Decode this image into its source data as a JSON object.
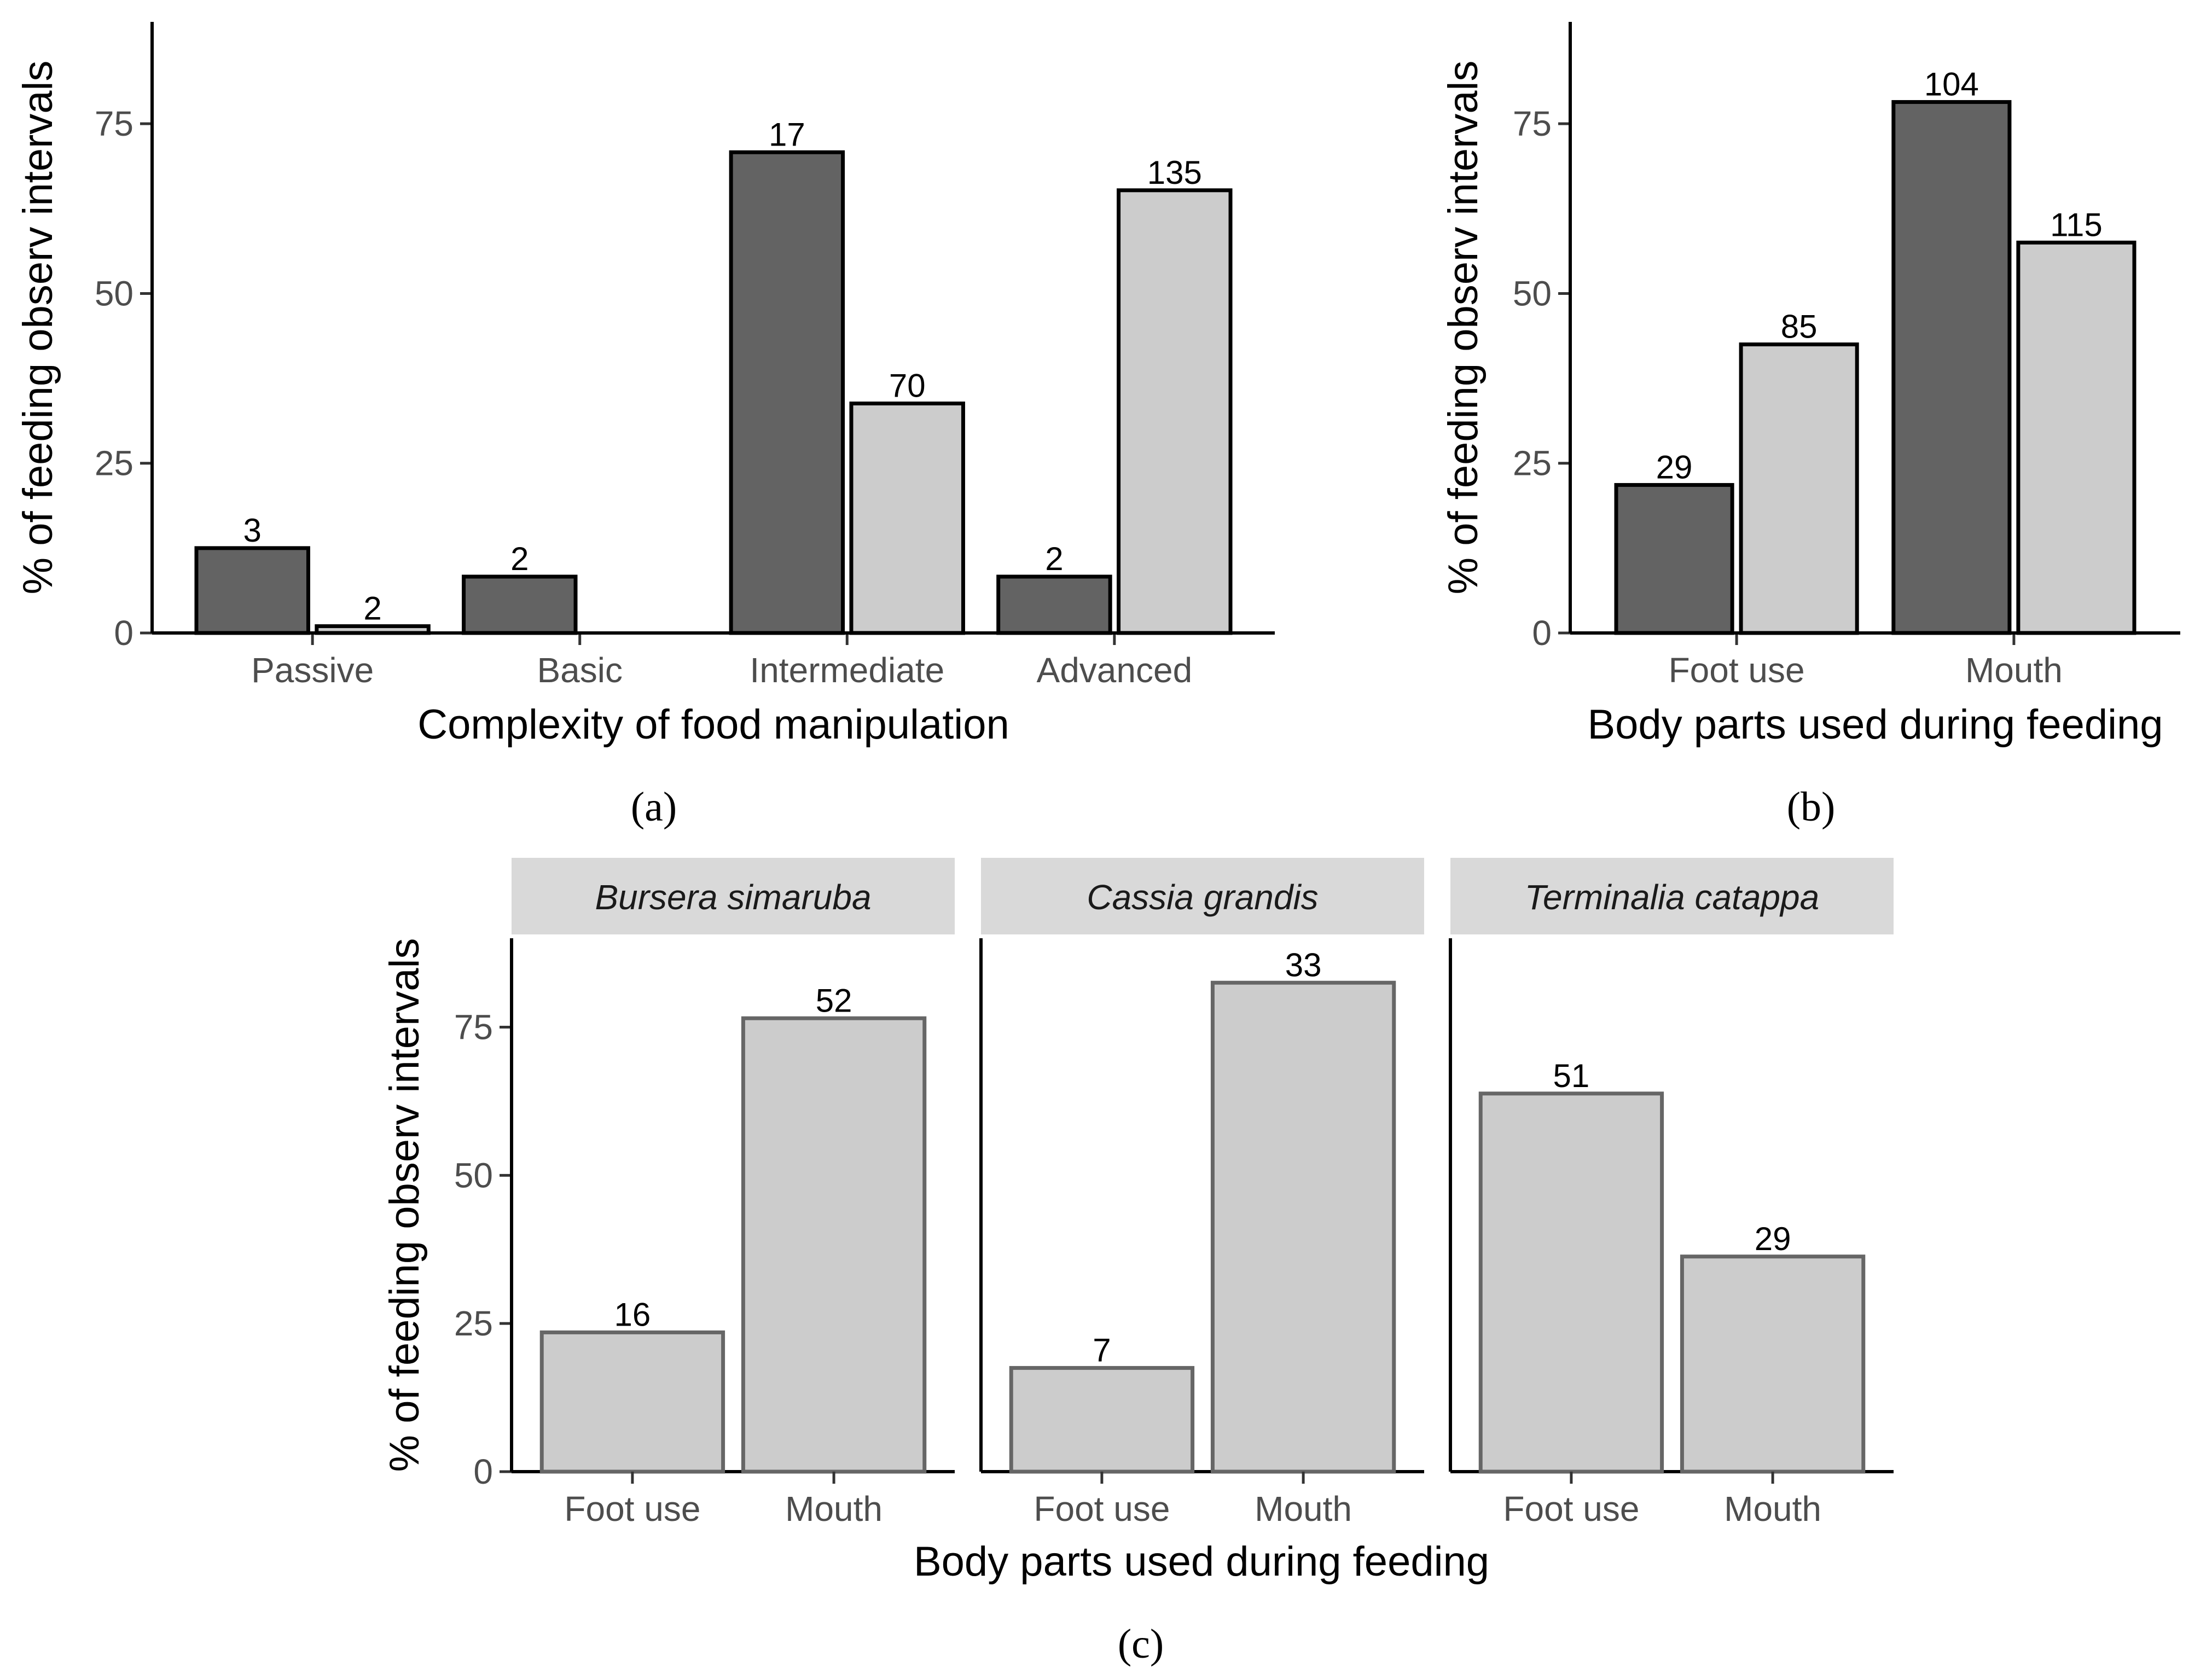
{
  "chart_data": [
    {
      "id": "a",
      "type": "bar",
      "panel_label": "(a)",
      "xlabel": "Complexity of food manipulation",
      "ylabel": "% of feeding observ intervals",
      "ylim": [
        0,
        90
      ],
      "yticks": [
        0,
        25,
        50,
        75
      ],
      "categories": [
        "Passive",
        "Basic",
        "Intermediate",
        "Advanced"
      ],
      "series": [
        {
          "name": "dark",
          "color": "#636363",
          "values": [
            12.5,
            8.3,
            70.8,
            8.3
          ],
          "labels": [
            "3",
            "2",
            "17",
            "2"
          ]
        },
        {
          "name": "light",
          "color": "#cccccc",
          "values": [
            1.0,
            null,
            33.8,
            65.2
          ],
          "labels": [
            "2",
            "",
            "70",
            "135"
          ]
        }
      ]
    },
    {
      "id": "b",
      "type": "bar",
      "panel_label": "(b)",
      "xlabel": "Body parts used during feeding",
      "ylabel": "% of feeding observ intervals",
      "ylim": [
        0,
        90
      ],
      "yticks": [
        0,
        25,
        50,
        75
      ],
      "categories": [
        "Foot use",
        "Mouth"
      ],
      "series": [
        {
          "name": "dark",
          "color": "#636363",
          "values": [
            21.8,
            78.2
          ],
          "labels": [
            "29",
            "104"
          ]
        },
        {
          "name": "light",
          "color": "#cccccc",
          "values": [
            42.5,
            57.5
          ],
          "labels": [
            "85",
            "115"
          ]
        }
      ]
    },
    {
      "id": "c",
      "type": "bar",
      "panel_label": "(c)",
      "xlabel": "Body parts used during feeding",
      "ylabel": "% of feeding observ intervals",
      "ylim": [
        0,
        90
      ],
      "yticks": [
        0,
        25,
        50,
        75
      ],
      "facets": [
        {
          "title": "Bursera simaruba",
          "categories": [
            "Foot use",
            "Mouth"
          ],
          "values": [
            23.5,
            76.5
          ],
          "labels": [
            "16",
            "52"
          ]
        },
        {
          "title": "Cassia grandis",
          "categories": [
            "Foot use",
            "Mouth"
          ],
          "values": [
            17.5,
            82.5
          ],
          "labels": [
            "7",
            "33"
          ]
        },
        {
          "title": "Terminalia catappa",
          "categories": [
            "Foot use",
            "Mouth"
          ],
          "values": [
            63.8,
            36.3
          ],
          "labels": [
            "51",
            "29"
          ]
        }
      ],
      "bar_color": "#cccccc",
      "bar_outline": "#666666",
      "strip_color": "#d9d9d9"
    }
  ]
}
